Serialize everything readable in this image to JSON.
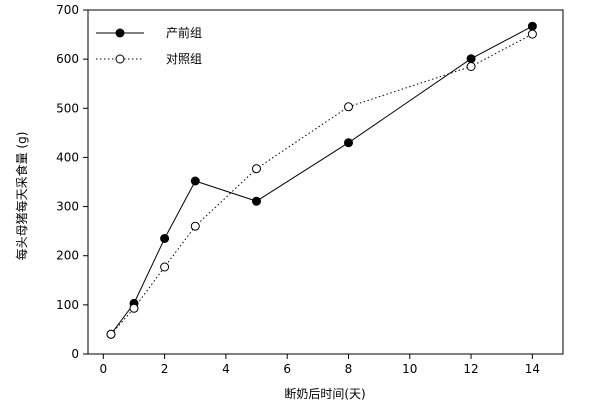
{
  "chart_data": {
    "type": "line",
    "xlabel": "断奶后时间(天)",
    "ylabel": "每头母猪每天采食量 (g)",
    "xlim": [
      -0.5,
      15
    ],
    "ylim": [
      0,
      700
    ],
    "xticks": [
      0,
      2,
      4,
      6,
      8,
      10,
      12,
      14
    ],
    "yticks": [
      0,
      100,
      200,
      300,
      400,
      500,
      600,
      700
    ],
    "grid": false,
    "legend_position": "top-left",
    "series": [
      {
        "name": "产前组",
        "line_style": "solid",
        "marker": "filled-circle",
        "color": "#000000",
        "x": [
          0.25,
          1,
          2,
          3,
          5,
          8,
          12,
          14
        ],
        "y": [
          40,
          103,
          235,
          352,
          311,
          430,
          601,
          667
        ]
      },
      {
        "name": "对照组",
        "line_style": "dotted",
        "marker": "open-circle",
        "color": "#000000",
        "x": [
          0.25,
          1,
          2,
          3,
          5,
          8,
          12,
          14
        ],
        "y": [
          40,
          93,
          177,
          260,
          377,
          503,
          585,
          651
        ]
      }
    ]
  }
}
